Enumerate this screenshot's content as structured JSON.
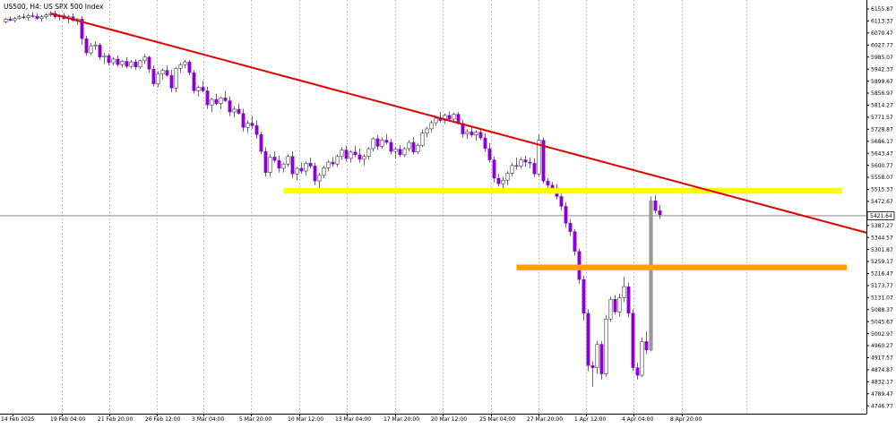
{
  "chart_data": {
    "type": "candlestick",
    "title": "US500, H4:  US SPX 500 Index",
    "current_price": 5421.64,
    "price_ticks": [
      "6155.87",
      "6113.37",
      "6070.47",
      "6027.77",
      "5985.07",
      "5942.37",
      "5899.67",
      "5856.97",
      "5814.27",
      "5771.57",
      "5728.87",
      "5686.17",
      "5643.47",
      "5600.77",
      "5558.07",
      "5515.37",
      "5472.67",
      "5387.27",
      "5344.57",
      "5301.87",
      "5259.17",
      "5216.47",
      "5173.77",
      "5131.07",
      "5088.37",
      "5045.67",
      "5002.97",
      "4960.27",
      "4917.57",
      "4874.87",
      "4832.17",
      "4789.47",
      "4746.77"
    ],
    "x_ticks": [
      "14 Feb 2025",
      "19 Feb 04:00",
      "21 Feb 20:00",
      "26 Feb 12:00",
      "3 Mar 04:00",
      "5 Mar 20:00",
      "10 Mar 12:00",
      "13 Mar 04:00",
      "17 Mar 20:00",
      "20 Mar 12:00",
      "25 Mar 04:00",
      "27 Mar 20:00",
      "1 Apr 12:00",
      "4 Apr 04:00",
      "8 Apr 20:00"
    ],
    "ylim": [
      4720,
      6170
    ],
    "grid": "vertical dotted",
    "colors": {
      "bull": "#ffffff",
      "bear": "#8B00D4",
      "wick": "#444444",
      "trendline": "#E00000",
      "support": "#FFFF00",
      "resistance": "#FFA000",
      "big_candle": "#999999"
    },
    "trendline": {
      "from": {
        "bar": 10,
        "price": 6140
      },
      "to": {
        "bar": 155,
        "price": 5520
      }
    },
    "support_zone": {
      "from_bar": 62,
      "to_bar": 155,
      "price": 5510
    },
    "resistance_zone": {
      "from_bar": 114,
      "to_bar": 155,
      "price": 5238
    },
    "candles": [
      [
        6110,
        6125,
        6105,
        6120
      ],
      [
        6120,
        6130,
        6112,
        6115
      ],
      [
        6115,
        6128,
        6108,
        6122
      ],
      [
        6122,
        6135,
        6118,
        6128
      ],
      [
        6128,
        6140,
        6120,
        6125
      ],
      [
        6125,
        6138,
        6115,
        6132
      ],
      [
        6132,
        6145,
        6125,
        6130
      ],
      [
        6130,
        6140,
        6118,
        6122
      ],
      [
        6122,
        6135,
        6110,
        6128
      ],
      [
        6128,
        6142,
        6120,
        6135
      ],
      [
        6135,
        6148,
        6128,
        6140
      ],
      [
        6140,
        6150,
        6122,
        6128
      ],
      [
        6128,
        6138,
        6115,
        6132
      ],
      [
        6132,
        6142,
        6118,
        6122
      ],
      [
        6122,
        6135,
        6105,
        6128
      ],
      [
        6128,
        6140,
        6110,
        6115
      ],
      [
        6115,
        6125,
        6100,
        6120
      ],
      [
        6120,
        6130,
        6030,
        6050
      ],
      [
        6050,
        6060,
        5990,
        6000
      ],
      [
        6000,
        6035,
        5992,
        6025
      ],
      [
        6025,
        6040,
        6010,
        6028
      ],
      [
        6028,
        6035,
        5975,
        5985
      ],
      [
        5985,
        6000,
        5960,
        5990
      ],
      [
        5990,
        5998,
        5955,
        5965
      ],
      [
        5965,
        5985,
        5955,
        5978
      ],
      [
        5978,
        5990,
        5950,
        5958
      ],
      [
        5958,
        5975,
        5948,
        5970
      ],
      [
        5970,
        5985,
        5945,
        5952
      ],
      [
        5952,
        5975,
        5945,
        5968
      ],
      [
        5968,
        5978,
        5940,
        5950
      ],
      [
        5950,
        5975,
        5942,
        5972
      ],
      [
        5972,
        5995,
        5960,
        5985
      ],
      [
        5985,
        5990,
        5930,
        5942
      ],
      [
        5942,
        5955,
        5880,
        5890
      ],
      [
        5890,
        5935,
        5878,
        5925
      ],
      [
        5925,
        5945,
        5905,
        5938
      ],
      [
        5938,
        5955,
        5915,
        5920
      ],
      [
        5920,
        5940,
        5860,
        5875
      ],
      [
        5875,
        5950,
        5860,
        5945
      ],
      [
        5945,
        5965,
        5930,
        5958
      ],
      [
        5958,
        5975,
        5945,
        5968
      ],
      [
        5968,
        5975,
        5920,
        5930
      ],
      [
        5930,
        5940,
        5855,
        5865
      ],
      [
        5865,
        5885,
        5845,
        5878
      ],
      [
        5878,
        5900,
        5860,
        5865
      ],
      [
        5865,
        5880,
        5800,
        5815
      ],
      [
        5815,
        5840,
        5790,
        5835
      ],
      [
        5835,
        5855,
        5815,
        5820
      ],
      [
        5820,
        5845,
        5800,
        5840
      ],
      [
        5840,
        5865,
        5825,
        5830
      ],
      [
        5830,
        5845,
        5775,
        5790
      ],
      [
        5790,
        5810,
        5770,
        5800
      ],
      [
        5800,
        5820,
        5780,
        5785
      ],
      [
        5785,
        5800,
        5720,
        5735
      ],
      [
        5735,
        5760,
        5715,
        5750
      ],
      [
        5750,
        5775,
        5730,
        5742
      ],
      [
        5742,
        5760,
        5695,
        5710
      ],
      [
        5710,
        5720,
        5640,
        5650
      ],
      [
        5650,
        5665,
        5560,
        5575
      ],
      [
        5575,
        5640,
        5560,
        5630
      ],
      [
        5630,
        5650,
        5610,
        5618
      ],
      [
        5618,
        5635,
        5575,
        5590
      ],
      [
        5590,
        5610,
        5575,
        5605
      ],
      [
        5605,
        5640,
        5595,
        5632
      ],
      [
        5632,
        5650,
        5555,
        5570
      ],
      [
        5570,
        5595,
        5548,
        5590
      ],
      [
        5590,
        5610,
        5570,
        5580
      ],
      [
        5580,
        5615,
        5565,
        5608
      ],
      [
        5608,
        5628,
        5590,
        5598
      ],
      [
        5598,
        5610,
        5530,
        5545
      ],
      [
        5545,
        5575,
        5520,
        5565
      ],
      [
        5565,
        5600,
        5555,
        5592
      ],
      [
        5592,
        5620,
        5580,
        5612
      ],
      [
        5612,
        5630,
        5595,
        5605
      ],
      [
        5605,
        5640,
        5595,
        5632
      ],
      [
        5632,
        5665,
        5620,
        5655
      ],
      [
        5655,
        5670,
        5615,
        5625
      ],
      [
        5625,
        5655,
        5610,
        5648
      ],
      [
        5648,
        5670,
        5630,
        5638
      ],
      [
        5638,
        5660,
        5610,
        5622
      ],
      [
        5622,
        5640,
        5600,
        5632
      ],
      [
        5632,
        5665,
        5620,
        5660
      ],
      [
        5660,
        5700,
        5650,
        5695
      ],
      [
        5695,
        5708,
        5655,
        5668
      ],
      [
        5668,
        5700,
        5660,
        5690
      ],
      [
        5690,
        5712,
        5675,
        5682
      ],
      [
        5682,
        5695,
        5640,
        5650
      ],
      [
        5650,
        5668,
        5625,
        5658
      ],
      [
        5658,
        5672,
        5630,
        5638
      ],
      [
        5638,
        5665,
        5630,
        5660
      ],
      [
        5660,
        5690,
        5650,
        5682
      ],
      [
        5682,
        5700,
        5640,
        5648
      ],
      [
        5648,
        5680,
        5640,
        5672
      ],
      [
        5672,
        5728,
        5665,
        5715
      ],
      [
        5715,
        5738,
        5700,
        5730
      ],
      [
        5730,
        5760,
        5718,
        5752
      ],
      [
        5752,
        5775,
        5740,
        5768
      ],
      [
        5768,
        5790,
        5752,
        5760
      ],
      [
        5760,
        5785,
        5748,
        5778
      ],
      [
        5778,
        5792,
        5755,
        5765
      ],
      [
        5765,
        5788,
        5752,
        5782
      ],
      [
        5782,
        5790,
        5745,
        5750
      ],
      [
        5750,
        5762,
        5700,
        5712
      ],
      [
        5712,
        5730,
        5695,
        5720
      ],
      [
        5720,
        5735,
        5700,
        5708
      ],
      [
        5708,
        5725,
        5688,
        5718
      ],
      [
        5718,
        5730,
        5690,
        5698
      ],
      [
        5698,
        5715,
        5650,
        5660
      ],
      [
        5660,
        5680,
        5610,
        5620
      ],
      [
        5620,
        5632,
        5540,
        5555
      ],
      [
        5555,
        5570,
        5525,
        5535
      ],
      [
        5535,
        5560,
        5520,
        5548
      ],
      [
        5548,
        5580,
        5530,
        5572
      ],
      [
        5572,
        5610,
        5560,
        5600
      ],
      [
        5600,
        5628,
        5585,
        5598
      ],
      [
        5598,
        5630,
        5588,
        5620
      ],
      [
        5620,
        5635,
        5595,
        5612
      ],
      [
        5612,
        5628,
        5590,
        5608
      ],
      [
        5608,
        5625,
        5560,
        5570
      ],
      [
        5570,
        5710,
        5560,
        5690
      ],
      [
        5690,
        5700,
        5535,
        5545
      ],
      [
        5545,
        5555,
        5520,
        5530
      ],
      [
        5530,
        5542,
        5505,
        5520
      ],
      [
        5520,
        5535,
        5480,
        5490
      ],
      [
        5490,
        5505,
        5440,
        5455
      ],
      [
        5455,
        5470,
        5380,
        5395
      ],
      [
        5395,
        5410,
        5350,
        5365
      ],
      [
        5365,
        5375,
        5280,
        5295
      ],
      [
        5295,
        5305,
        5180,
        5195
      ],
      [
        5195,
        5210,
        5050,
        5075
      ],
      [
        5075,
        5090,
        4870,
        4890
      ],
      [
        4890,
        4905,
        4815,
        4882
      ],
      [
        4882,
        4978,
        4860,
        4965
      ],
      [
        4965,
        4975,
        4840,
        4860
      ],
      [
        4860,
        5070,
        4850,
        5055
      ],
      [
        5055,
        5135,
        5045,
        5125
      ],
      [
        5125,
        5140,
        5070,
        5080
      ],
      [
        5080,
        5145,
        5065,
        5130
      ],
      [
        5130,
        5205,
        5115,
        5170
      ],
      [
        5170,
        5185,
        5060,
        5075
      ],
      [
        5075,
        5090,
        4870,
        4882
      ],
      [
        4882,
        4900,
        4840,
        4855
      ],
      [
        4855,
        4990,
        4848,
        4975
      ],
      [
        4975,
        5010,
        4930,
        4945
      ],
      [
        4945,
        5490,
        4940,
        5475
      ],
      [
        5475,
        5495,
        5430,
        5440
      ],
      [
        5440,
        5460,
        5410,
        5425
      ]
    ]
  }
}
